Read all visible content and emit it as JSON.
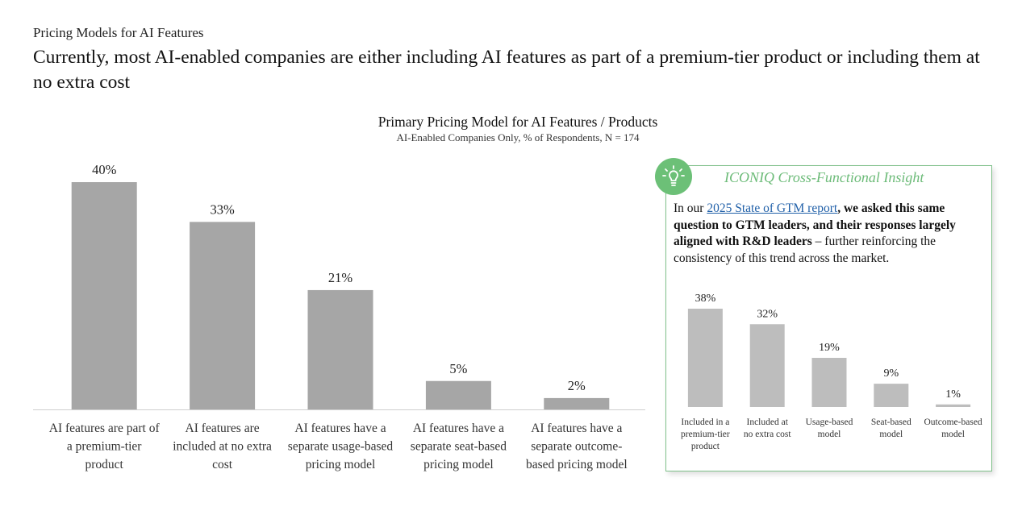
{
  "header": {
    "eyebrow": "Pricing Models for AI Features",
    "headline": "Currently, most AI-enabled companies are either including AI features as part of a premium-tier product or including them at no extra cost"
  },
  "chart_data": [
    {
      "type": "bar",
      "title": "Primary Pricing Model for AI Features / Products",
      "subtitle": "AI-Enabled Companies Only, % of Respondents, N = 174",
      "categories": [
        [
          "AI features are part of",
          "a premium-tier",
          "product"
        ],
        [
          "AI features are",
          "included at no extra",
          "cost"
        ],
        [
          "AI features have a",
          "separate usage-based",
          "pricing model"
        ],
        [
          "AI features have a",
          "separate seat-based",
          "pricing model"
        ],
        [
          "AI features have a",
          "separate outcome-",
          "based pricing model"
        ]
      ],
      "values": [
        40,
        33,
        21,
        5,
        2
      ],
      "data_labels": [
        "40%",
        "33%",
        "21%",
        "5%",
        "2%"
      ],
      "unit": "%",
      "ylim": [
        0,
        40
      ],
      "grid": false,
      "bar_color": "#a6a6a6"
    },
    {
      "type": "bar",
      "categories": [
        [
          "Included in a",
          "premium-tier",
          "product"
        ],
        [
          "Included at",
          "no extra cost"
        ],
        [
          "Usage-based",
          "model"
        ],
        [
          "Seat-based",
          "model"
        ],
        [
          "Outcome-based",
          "model"
        ]
      ],
      "values": [
        38,
        32,
        19,
        9,
        1
      ],
      "data_labels": [
        "38%",
        "32%",
        "19%",
        "9%",
        "1%"
      ],
      "unit": "%",
      "ylim": [
        0,
        38
      ],
      "grid": false,
      "bar_color": "#bdbdbd"
    }
  ],
  "insight": {
    "title": "ICONIQ Cross-Functional Insight",
    "icon": "lightbulb-icon",
    "accent_color": "#6cc077",
    "text_prefix": "In our ",
    "link_text": "2025 State of GTM report",
    "text_bold": ", we asked this same question to GTM leaders, and their responses largely aligned with R&D leaders",
    "text_rest": " – further reinforcing the consistency of this trend across the market."
  }
}
